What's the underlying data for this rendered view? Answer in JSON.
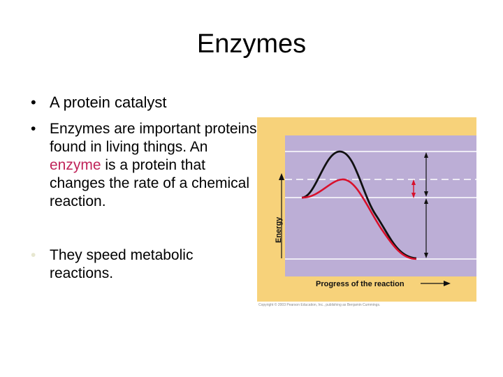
{
  "slide": {
    "title": "Enzymes",
    "bullets": [
      {
        "segments": [
          {
            "text": "A protein catalyst",
            "highlight": false
          }
        ]
      },
      {
        "segments": [
          {
            "text": "Enzymes are important proteins found in living things.  An ",
            "highlight": false
          },
          {
            "text": "enzyme",
            "highlight": true
          },
          {
            "text": " is a protein that changes the rate of a chemical reaction.",
            "highlight": false
          }
        ]
      },
      {
        "segments": [
          {
            "text": "They speed metabolic reactions.",
            "highlight": false
          }
        ]
      }
    ],
    "bullet_glyph": "•",
    "highlight_color": "#c0245a"
  },
  "diagram": {
    "energy_label": "Energy",
    "progress_label": "Progress of the reaction",
    "credit": "Copyright © 2003 Pearson Education, Inc., publishing as Benjamin Cummings.",
    "colors": {
      "frame": "#f7d27a",
      "plot": "#bcaed6",
      "uncatalyzed_curve": "#111111",
      "catalyzed_curve": "#d8102c"
    }
  }
}
